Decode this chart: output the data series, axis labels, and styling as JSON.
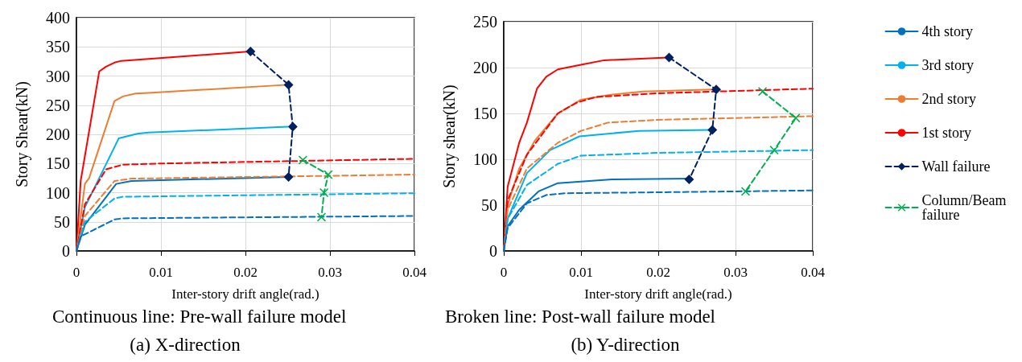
{
  "chart_data": [
    {
      "type": "line",
      "title": "(a) X-direction",
      "xlabel": "Inter-story drift angle(rad.)",
      "ylabel": "Story Shear(kN)",
      "annotations": [
        "Continuous line: Pre-wall failure model"
      ],
      "xlim": [
        0,
        0.04
      ],
      "xticks": [
        0,
        0.01,
        0.02,
        0.03,
        0.04
      ],
      "ylim": [
        0,
        400
      ],
      "yticks": [
        0,
        50,
        100,
        150,
        200,
        250,
        300,
        350,
        400
      ],
      "grid": true,
      "legend": false,
      "series": [
        {
          "color": "#ff0000",
          "line_style": "solid",
          "marker": "none",
          "x": [
            0,
            0.0005,
            0.0027,
            0.0035,
            0.0045,
            0.0053,
            0.0205
          ],
          "values": [
            0,
            120,
            308,
            316,
            323,
            326,
            342
          ]
        },
        {
          "color": "#ed7d31",
          "line_style": "solid",
          "marker": "none",
          "x": [
            0,
            0.001,
            0.0015,
            0.0045,
            0.0055,
            0.007,
            0.0085,
            0.025
          ],
          "values": [
            0,
            115,
            125,
            257,
            265,
            270,
            271,
            285
          ]
        },
        {
          "color": "#00b0f0",
          "line_style": "solid",
          "marker": "none",
          "x": [
            0,
            0.001,
            0.005,
            0.0072,
            0.0085,
            0.025
          ],
          "values": [
            0,
            75,
            193,
            201,
            203,
            213
          ]
        },
        {
          "color": "#0070c0",
          "line_style": "solid",
          "marker": "none",
          "x": [
            0,
            0.001,
            0.0047,
            0.0065,
            0.025
          ],
          "values": [
            0,
            45,
            115,
            120,
            127
          ]
        },
        {
          "color": "#ff0000",
          "line_style": "dashed",
          "marker": "none",
          "x": [
            0,
            0.001,
            0.0035,
            0.0055,
            0.01,
            0.04
          ],
          "values": [
            0,
            80,
            140,
            148,
            150,
            158
          ]
        },
        {
          "color": "#ed7d31",
          "line_style": "dashed",
          "marker": "none",
          "x": [
            0,
            0.001,
            0.0045,
            0.0065,
            0.04
          ],
          "values": [
            0,
            60,
            120,
            124,
            131
          ]
        },
        {
          "color": "#00b0f0",
          "line_style": "dashed",
          "marker": "none",
          "x": [
            0,
            0.001,
            0.0045,
            0.0055,
            0.04
          ],
          "values": [
            0,
            50,
            90,
            93,
            99
          ]
        },
        {
          "color": "#0070c0",
          "line_style": "dashed",
          "marker": "none",
          "x": [
            0,
            0.0005,
            0.0045,
            0.0055,
            0.04
          ],
          "values": [
            0,
            25,
            54,
            56,
            60
          ]
        },
        {
          "color": "#002060",
          "line_style": "dashed",
          "marker": "diamond",
          "x": [
            0.0206,
            0.0251,
            0.0256,
            0.0251
          ],
          "values": [
            342,
            285,
            213,
            127
          ]
        },
        {
          "color": "#00b050",
          "line_style": "dashed",
          "marker": "cross",
          "x": [
            0.0268,
            0.0298,
            0.0293,
            0.029
          ],
          "values": [
            156,
            131,
            100,
            58
          ]
        }
      ]
    },
    {
      "type": "line",
      "title": "(b) Y-direction",
      "xlabel": "Inter-story drift angle(rad.)",
      "ylabel": "Story shear(kN)",
      "annotations": [
        "Broken line: Post-wall failure model"
      ],
      "xlim": [
        0,
        0.04
      ],
      "xticks": [
        0,
        0.01,
        0.02,
        0.03,
        0.04
      ],
      "ylim": [
        0,
        250
      ],
      "yticks": [
        0,
        50,
        100,
        150,
        200,
        250
      ],
      "grid": true,
      "legend": "right",
      "series": [
        {
          "name": "4th story",
          "color": "#0070c0",
          "line_style": "solid",
          "marker": "none",
          "x": [
            0,
            0.0005,
            0.002,
            0.0045,
            0.007,
            0.014,
            0.024
          ],
          "values": [
            0,
            27,
            45,
            65,
            74,
            78,
            79
          ]
        },
        {
          "name": "3rd story",
          "color": "#00b0f0",
          "line_style": "solid",
          "marker": "none",
          "x": [
            0,
            0.0005,
            0.003,
            0.006,
            0.0098,
            0.0175,
            0.0268
          ],
          "values": [
            0,
            35,
            85,
            110,
            125,
            131,
            132
          ]
        },
        {
          "name": "2nd story",
          "color": "#ed7d31",
          "line_style": "solid",
          "marker": "none",
          "x": [
            0,
            0.0005,
            0.002,
            0.004,
            0.007,
            0.01,
            0.0135,
            0.018,
            0.027
          ],
          "values": [
            0,
            50,
            90,
            120,
            150,
            165,
            170,
            174,
            176
          ]
        },
        {
          "name": "1st story",
          "color": "#ff0000",
          "line_style": "solid",
          "marker": "none",
          "x": [
            0,
            0.0005,
            0.002,
            0.003,
            0.0043,
            0.0055,
            0.007,
            0.01,
            0.013,
            0.0213
          ],
          "values": [
            0,
            70,
            118,
            140,
            177,
            190,
            198,
            203,
            208,
            211
          ]
        },
        {
          "name": "Wall failure",
          "color": "#002060",
          "line_style": "dashed",
          "marker": "diamond",
          "x": [
            0.0214,
            0.0275,
            0.027,
            0.024
          ],
          "values": [
            211,
            176,
            132,
            78
          ]
        },
        {
          "name": "Column/Beam failure",
          "color": "#00b050",
          "line_style": "dashed",
          "marker": "cross",
          "x": [
            0.0335,
            0.0378,
            0.035,
            0.0313
          ],
          "values": [
            174,
            145,
            110,
            65
          ]
        },
        {
          "color": "#ff0000",
          "line_style": "dashed",
          "marker": "none",
          "x": [
            0,
            0.0005,
            0.003,
            0.007,
            0.0095,
            0.012,
            0.02,
            0.04
          ],
          "values": [
            0,
            55,
            105,
            150,
            162,
            168,
            172,
            177
          ]
        },
        {
          "color": "#ed7d31",
          "line_style": "dashed",
          "marker": "none",
          "x": [
            0,
            0.0005,
            0.003,
            0.007,
            0.01,
            0.0135,
            0.02,
            0.04
          ],
          "values": [
            0,
            45,
            90,
            118,
            131,
            140,
            143,
            147
          ]
        },
        {
          "color": "#00b0f0",
          "line_style": "dashed",
          "marker": "none",
          "x": [
            0,
            0.0005,
            0.003,
            0.007,
            0.01,
            0.02,
            0.04
          ],
          "values": [
            0,
            35,
            72,
            95,
            104,
            107,
            110
          ]
        },
        {
          "color": "#0070c0",
          "line_style": "dashed",
          "marker": "none",
          "x": [
            0,
            0.0005,
            0.003,
            0.0055,
            0.008,
            0.02,
            0.04
          ],
          "values": [
            0,
            25,
            52,
            61,
            63,
            64,
            66
          ]
        }
      ]
    }
  ]
}
